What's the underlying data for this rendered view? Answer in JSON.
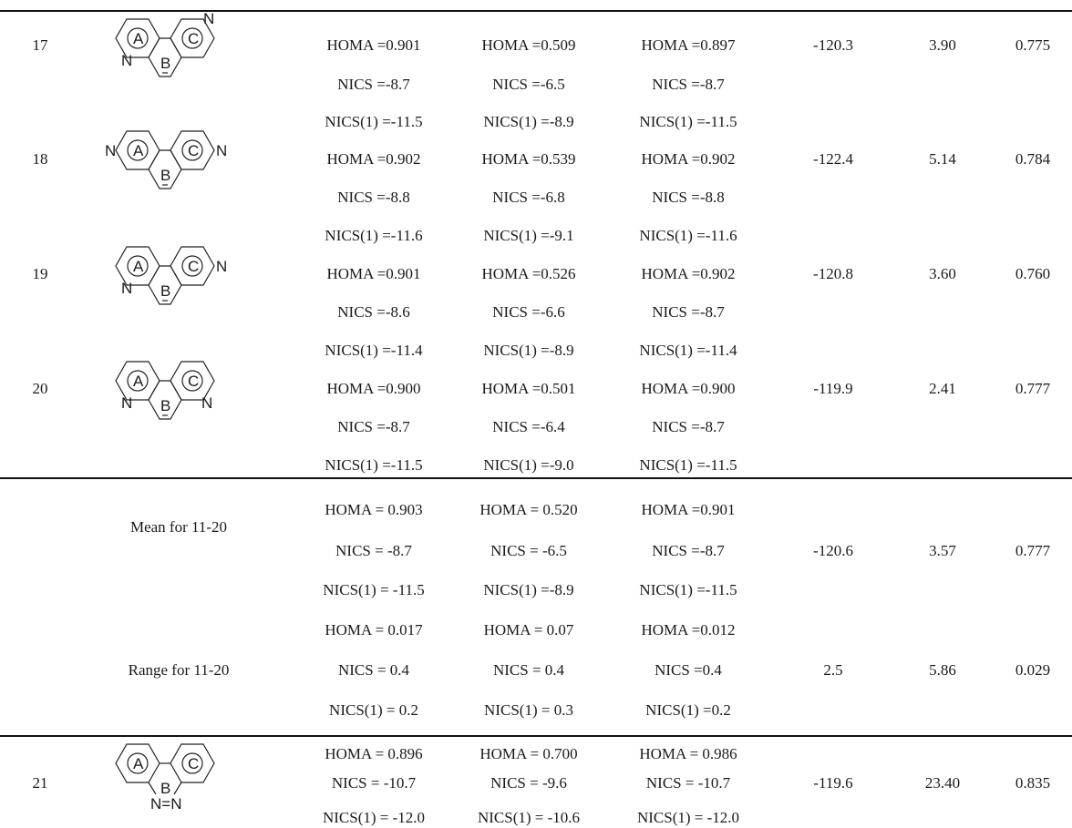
{
  "structures": {
    "ring_labels": {
      "a": "A",
      "b": "B",
      "c": "C"
    },
    "n": "N",
    "azo": "N=N"
  },
  "rows": [
    {
      "id": "17",
      "cells": [
        [
          "HOMA =0.901",
          "HOMA =0.509",
          "HOMA =0.897"
        ],
        [
          "NICS =-8.7",
          "NICS =-6.5",
          "NICS =-8.7"
        ],
        [
          "NICS(1) =-11.5",
          "NICS(1) =-8.9",
          "NICS(1) =-11.5"
        ]
      ],
      "v1": "-120.3",
      "v2": "3.90",
      "v3": "0.775"
    },
    {
      "id": "18",
      "cells": [
        [
          "HOMA =0.902",
          "HOMA =0.539",
          "HOMA =0.902"
        ],
        [
          "NICS =-8.8",
          "NICS =-6.8",
          "NICS =-8.8"
        ],
        [
          "NICS(1) =-11.6",
          "NICS(1) =-9.1",
          "NICS(1) =-11.6"
        ]
      ],
      "v1": "-122.4",
      "v2": "5.14",
      "v3": "0.784"
    },
    {
      "id": "19",
      "cells": [
        [
          "HOMA =0.901",
          "HOMA =0.526",
          "HOMA =0.902"
        ],
        [
          "NICS =-8.6",
          "NICS =-6.6",
          "NICS =-8.7"
        ],
        [
          "NICS(1) =-11.4",
          "NICS(1) =-8.9",
          "NICS(1) =-11.4"
        ]
      ],
      "v1": "-120.8",
      "v2": "3.60",
      "v3": "0.760"
    },
    {
      "id": "20",
      "cells": [
        [
          "HOMA =0.900",
          "HOMA =0.501",
          "HOMA =0.900"
        ],
        [
          "NICS =-8.7",
          "NICS =-6.4",
          "NICS =-8.7"
        ],
        [
          "NICS(1) =-11.5",
          "NICS(1) =-9.0",
          "NICS(1) =-11.5"
        ]
      ],
      "v1": "-119.9",
      "v2": "2.41",
      "v3": "0.777"
    }
  ],
  "summary": [
    {
      "label": "Mean for 11-20",
      "cells": [
        [
          "HOMA = 0.903",
          "HOMA = 0.520",
          "HOMA =0.901"
        ],
        [
          "NICS = -8.7",
          "NICS = -6.5",
          "NICS =-8.7"
        ],
        [
          "NICS(1) = -11.5",
          "NICS(1) =-8.9",
          "NICS(1) =-11.5"
        ]
      ],
      "v1": "-120.6",
      "v2": "3.57",
      "v3": "0.777"
    },
    {
      "label": "Range for 11-20",
      "cells": [
        [
          "HOMA = 0.017",
          "HOMA = 0.07",
          "HOMA =0.012"
        ],
        [
          "NICS = 0.4",
          "NICS = 0.4",
          "NICS =0.4"
        ],
        [
          "NICS(1) = 0.2",
          "NICS(1) = 0.3",
          "NICS(1) =0.2"
        ]
      ],
      "v1": "2.5",
      "v2": "5.86",
      "v3": "0.029"
    }
  ],
  "row21": {
    "id": "21",
    "cells": [
      [
        "HOMA = 0.896",
        "HOMA = 0.700",
        "HOMA = 0.986"
      ],
      [
        "NICS = -10.7",
        "NICS = -9.6",
        "NICS = -10.7"
      ],
      [
        "NICS(1) = -12.0",
        "NICS(1) = -10.6",
        "NICS(1) = -12.0"
      ]
    ],
    "v1": "-119.6",
    "v2": "23.40",
    "v3": "0.835"
  }
}
